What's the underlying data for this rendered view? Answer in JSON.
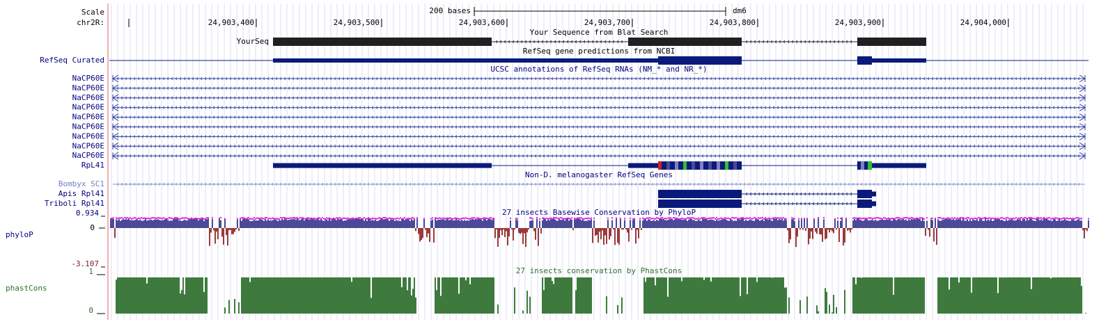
{
  "ruler": {
    "scale_label": "Scale",
    "chrom": "chr2R:",
    "span": "200 bases",
    "assembly": "dm6",
    "ticks": [
      "24,903,400",
      "24,903,500",
      "24,903,600",
      "24,903,700",
      "24,903,800",
      "24,903,900",
      "24,904,000"
    ]
  },
  "tracks": {
    "blat": {
      "title": "Your Sequence from Blat Search",
      "label": "YourSeq"
    },
    "refseq": {
      "title": "RefSeq gene predictions from NCBI",
      "label": "RefSeq Curated"
    },
    "ucsc": {
      "title": "UCSC annotations of RefSeq RNAs (NM_* and NR_*)",
      "items": [
        "NaCP60E",
        "NaCP60E",
        "NaCP60E",
        "NaCP60E",
        "NaCP60E",
        "NaCP60E",
        "NaCP60E",
        "NaCP60E",
        "NaCP60E",
        "RpL41"
      ]
    },
    "other": {
      "title": "Non-D. melanogaster RefSeq Genes",
      "items": [
        "Bombyx SC1",
        "Apis Rpl41",
        "Triboli Rpl41"
      ]
    },
    "phylop": {
      "title": "27 insects Basewise Conservation by PhyloP",
      "label": "phyloP",
      "max": "0.934",
      "zero": "0",
      "min": "-3.107"
    },
    "phastcons": {
      "title": "27 insects conservation by PhastCons",
      "label": "phastCons",
      "max": "1",
      "zero": "0"
    }
  }
}
